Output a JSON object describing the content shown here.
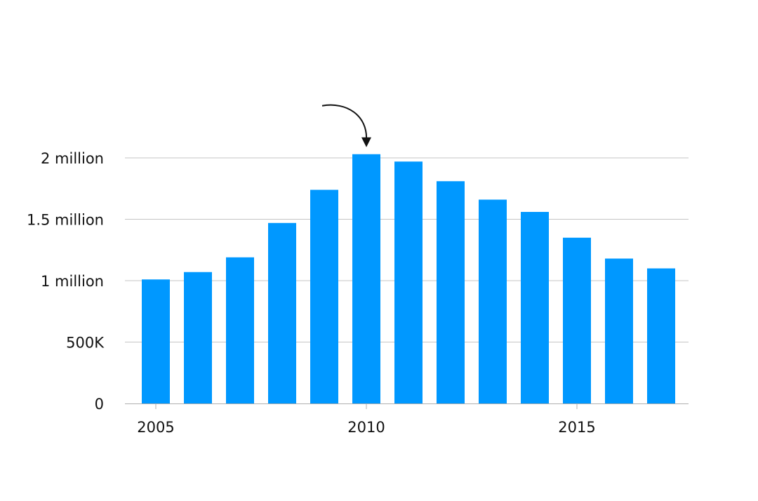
{
  "colors": {
    "bar": "#0098ff",
    "text": "#111111",
    "grid": "#c4c4c4"
  },
  "chart_data": {
    "type": "bar",
    "title": "",
    "xlabel": "",
    "ylabel": "",
    "grid": true,
    "legend": "none",
    "categories": [
      2005,
      2006,
      2007,
      2008,
      2009,
      2010,
      2011,
      2012,
      2013,
      2014,
      2015,
      2016,
      2017
    ],
    "values": [
      1010000,
      1070000,
      1190000,
      1470000,
      1740000,
      2030000,
      1970000,
      1810000,
      1660000,
      1560000,
      1350000,
      1180000,
      1100000
    ],
    "ylim": [
      0,
      2000000
    ],
    "yticks": [
      {
        "value": 0,
        "label": "0"
      },
      {
        "value": 500000,
        "label": "500K"
      },
      {
        "value": 1000000,
        "label": "1 million"
      },
      {
        "value": 1500000,
        "label": "1.5 million"
      },
      {
        "value": 2000000,
        "label": "2 million"
      }
    ],
    "xticks": [
      {
        "value": 2005,
        "label": "2005"
      },
      {
        "value": 2010,
        "label": "2010"
      },
      {
        "value": 2015,
        "label": "2015"
      }
    ],
    "annotations": [
      {
        "type": "arrow",
        "target": 2010
      }
    ]
  }
}
